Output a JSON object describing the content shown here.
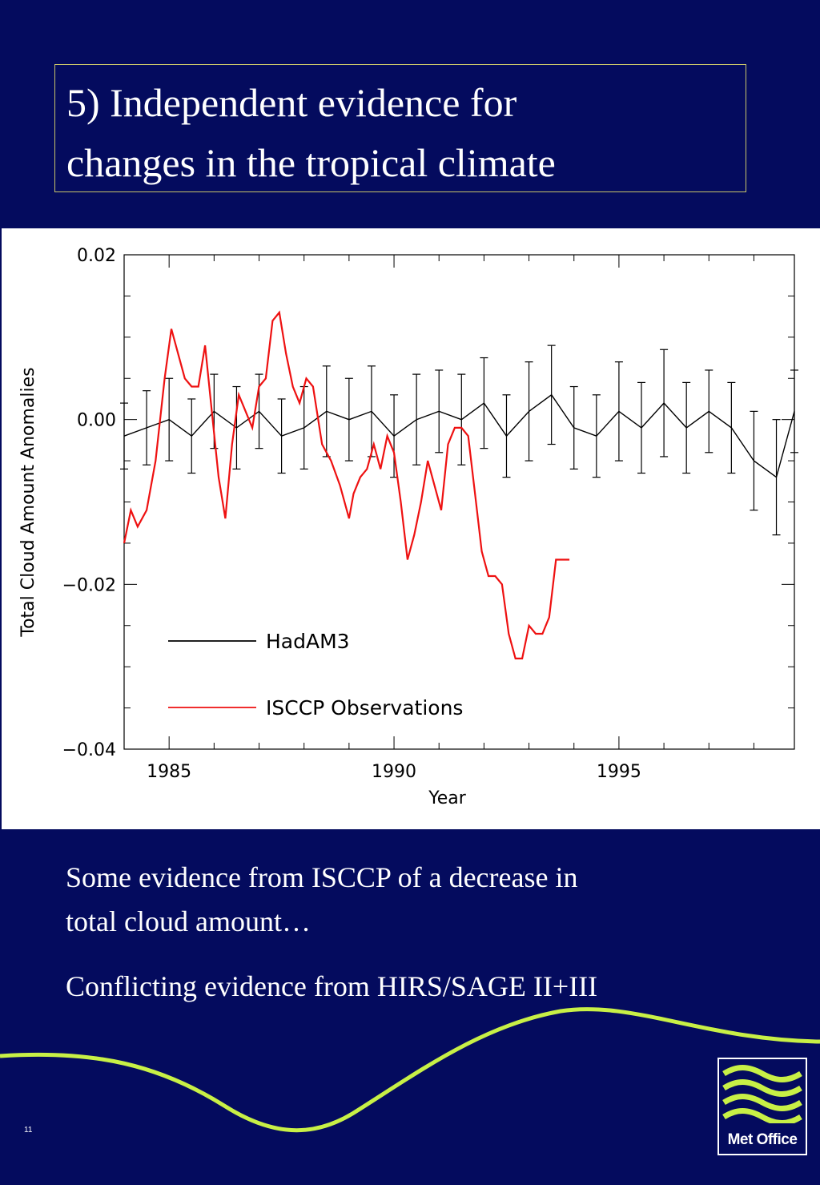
{
  "slide": {
    "title_lines": [
      "5) Independent evidence for",
      "changes in the tropical climate"
    ],
    "bullets": [
      "Some evidence from ISCCP of a decrease in",
      "total cloud amount…",
      "Conflicting evidence from HIRS/SAGE II+III"
    ],
    "page_number": "11",
    "logo_text": "Met Office",
    "colors": {
      "background": "#040b5e",
      "wave": "#c8f046",
      "title_border": "#c8c46a"
    }
  },
  "chart_data": {
    "type": "line",
    "title": "",
    "xlabel": "Year",
    "ylabel": "Total Cloud Amount Anomalies",
    "xlim": [
      1984.0,
      1998.9
    ],
    "ylim": [
      -0.04,
      0.02
    ],
    "x_ticks": [
      1985,
      1990,
      1995
    ],
    "x_tick_labels": [
      "1985",
      "1990",
      "1995"
    ],
    "y_ticks": [
      0.02,
      0.0,
      -0.02,
      -0.04
    ],
    "y_tick_labels": [
      "0.02",
      "0.00",
      "−0.02",
      "−0.04"
    ],
    "legend": "inside, lower-left",
    "grid": false,
    "series": [
      {
        "name": "HadAM3",
        "color": "#000000",
        "has_error_bars": true,
        "x": [
          1984.0,
          1984.5,
          1985.0,
          1985.5,
          1986.0,
          1986.5,
          1987.0,
          1987.5,
          1988.0,
          1988.5,
          1989.0,
          1989.5,
          1990.0,
          1990.5,
          1991.0,
          1991.5,
          1992.0,
          1992.5,
          1993.0,
          1993.5,
          1994.0,
          1994.5,
          1995.0,
          1995.5,
          1996.0,
          1996.5,
          1997.0,
          1997.5,
          1998.0,
          1998.5,
          1998.9
        ],
        "y": [
          -0.002,
          -0.001,
          0.0,
          -0.002,
          0.001,
          -0.001,
          0.001,
          -0.002,
          -0.001,
          0.001,
          0.0,
          0.001,
          -0.002,
          0.0,
          0.001,
          0.0,
          0.002,
          -0.002,
          0.001,
          0.003,
          -0.001,
          -0.002,
          0.001,
          -0.001,
          0.002,
          -0.001,
          0.001,
          -0.001,
          -0.005,
          -0.007,
          0.001
        ],
        "error_half_width": [
          0.004,
          0.0045,
          0.005,
          0.0045,
          0.0045,
          0.005,
          0.0045,
          0.0045,
          0.005,
          0.0055,
          0.005,
          0.0055,
          0.005,
          0.0055,
          0.005,
          0.0055,
          0.0055,
          0.005,
          0.006,
          0.006,
          0.005,
          0.005,
          0.006,
          0.0055,
          0.0065,
          0.0055,
          0.005,
          0.0055,
          0.006,
          0.007,
          0.005
        ]
      },
      {
        "name": "ISCCP Observations",
        "color": "#ee1111",
        "x": [
          1984.0,
          1984.15,
          1984.3,
          1984.5,
          1984.7,
          1984.9,
          1985.05,
          1985.2,
          1985.35,
          1985.5,
          1985.65,
          1985.8,
          1985.95,
          1986.1,
          1986.25,
          1986.4,
          1986.55,
          1986.7,
          1986.85,
          1987.0,
          1987.15,
          1987.3,
          1987.45,
          1987.6,
          1987.75,
          1987.9,
          1988.05,
          1988.2,
          1988.4,
          1988.6,
          1988.8,
          1989.0,
          1989.1,
          1989.25,
          1989.4,
          1989.55,
          1989.7,
          1989.85,
          1990.0,
          1990.15,
          1990.3,
          1990.45,
          1990.6,
          1990.75,
          1990.9,
          1991.05,
          1991.2,
          1991.35,
          1991.5,
          1991.65,
          1991.8,
          1991.95,
          1992.1,
          1992.25,
          1992.4,
          1992.55,
          1992.7,
          1992.85,
          1993.0,
          1993.15,
          1993.3,
          1993.45,
          1993.6,
          1993.75,
          1993.9
        ],
        "y": [
          -0.015,
          -0.011,
          -0.013,
          -0.011,
          -0.005,
          0.005,
          0.011,
          0.008,
          0.005,
          0.004,
          0.004,
          0.009,
          0.001,
          -0.007,
          -0.012,
          -0.003,
          0.003,
          0.001,
          -0.001,
          0.004,
          0.005,
          0.012,
          0.013,
          0.008,
          0.004,
          0.002,
          0.005,
          0.004,
          -0.003,
          -0.005,
          -0.008,
          -0.012,
          -0.009,
          -0.007,
          -0.006,
          -0.003,
          -0.006,
          -0.002,
          -0.004,
          -0.01,
          -0.017,
          -0.014,
          -0.01,
          -0.005,
          -0.008,
          -0.011,
          -0.003,
          -0.001,
          -0.001,
          -0.002,
          -0.009,
          -0.016,
          -0.019,
          -0.019,
          -0.02,
          -0.026,
          -0.029,
          -0.029,
          -0.025,
          -0.026,
          -0.026,
          -0.024,
          -0.017,
          -0.017,
          -0.017
        ]
      }
    ]
  }
}
